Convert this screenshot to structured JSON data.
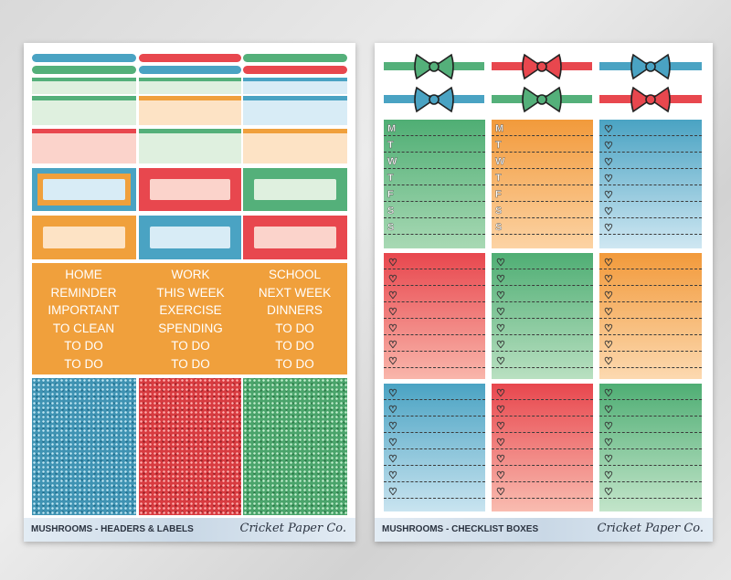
{
  "sheets": {
    "left": {
      "footer_title": "MUSHROOMS - HEADERS & LABELS",
      "brand": "Cricket Paper Co.",
      "word_columns": [
        [
          "HOME",
          "REMINDER",
          "IMPORTANT",
          "TO CLEAN",
          "TO DO",
          "TO DO"
        ],
        [
          "WORK",
          "THIS WEEK",
          "EXERCISE",
          "SPENDING",
          "TO DO",
          "TO DO"
        ],
        [
          "SCHOOL",
          "NEXT WEEK",
          "DINNERS",
          "TO DO",
          "TO DO",
          "TO DO"
        ]
      ]
    },
    "right": {
      "footer_title": "MUSHROOMS - CHECKLIST BOXES",
      "brand": "Cricket Paper Co.",
      "weekday_letters": [
        "M",
        "T",
        "W",
        "T",
        "F",
        "S",
        "S"
      ],
      "checkbox_glyph": "♡"
    }
  },
  "colors": {
    "blue": "#4aa3c3",
    "red": "#e8474e",
    "green": "#54b07a",
    "orange": "#f0a03c",
    "light_blue": "#d8ecf6",
    "light_red": "#fbd3cb",
    "light_green": "#dff0df",
    "light_orange": "#fde3c5"
  }
}
